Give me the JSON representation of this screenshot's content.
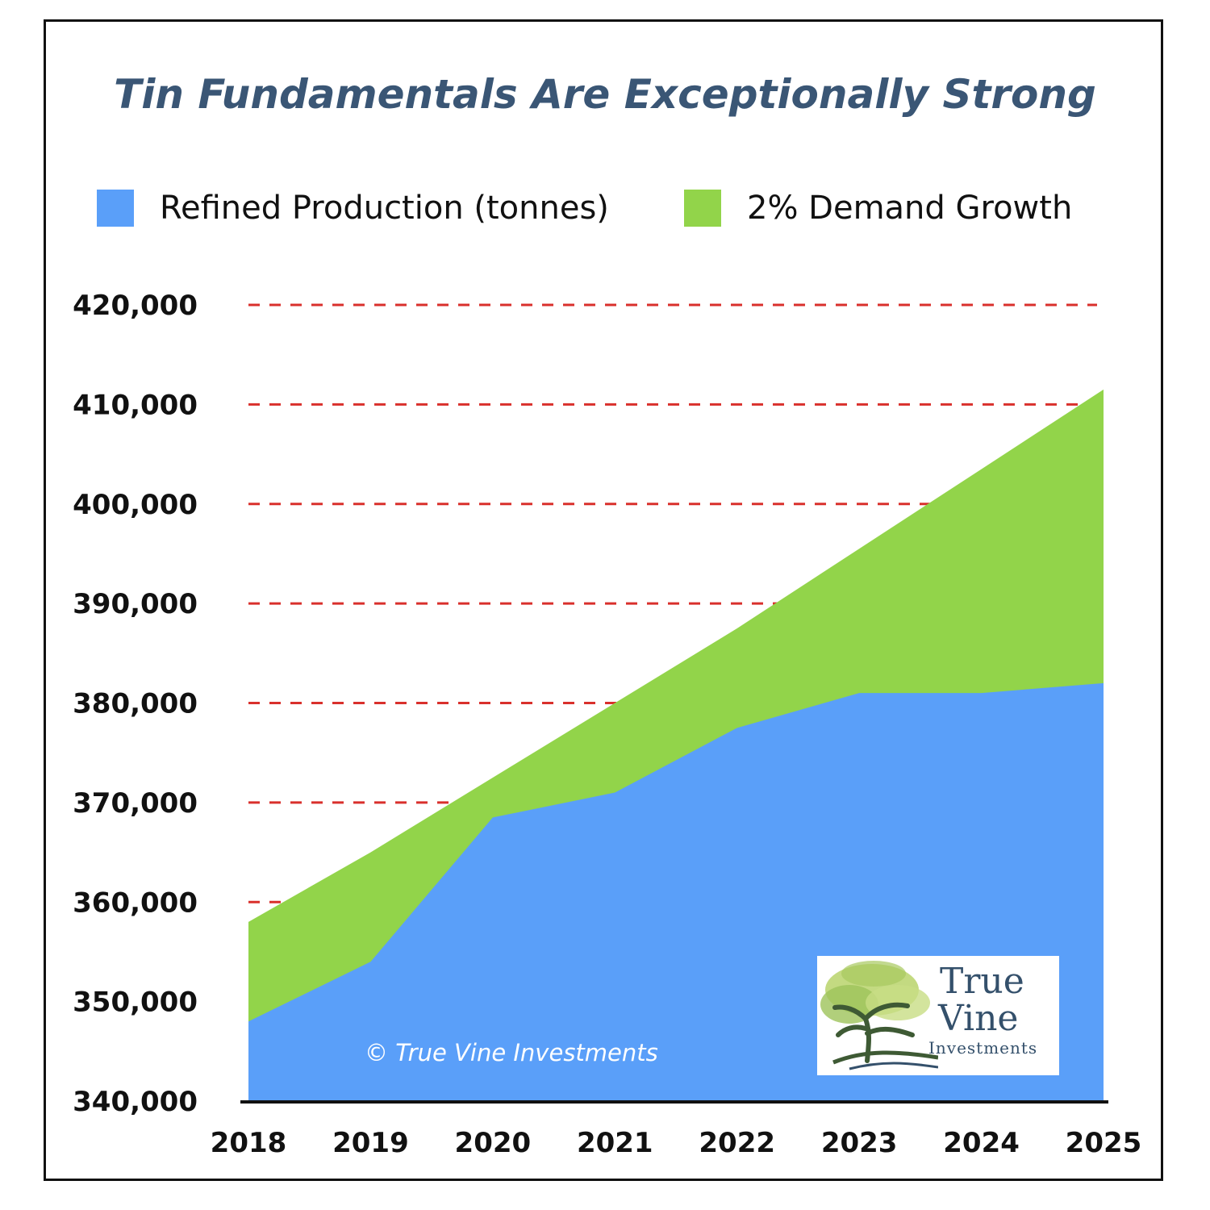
{
  "title": "Tin Fundamentals Are Exceptionally Strong",
  "legend": [
    {
      "label": "Refined Production (tonnes)",
      "color": "#5a9ff9"
    },
    {
      "label": "2% Demand Growth",
      "color": "#92d44a"
    }
  ],
  "copyright": "© True Vine Investments",
  "logo": {
    "line1": "True",
    "line2": "Vine",
    "line3": "Investments",
    "icon": "tree-icon"
  },
  "chart_data": {
    "type": "area",
    "title": "Tin Fundamentals Are Exceptionally Strong",
    "categories": [
      "2018",
      "2019",
      "2020",
      "2021",
      "2022",
      "2023",
      "2024",
      "2025"
    ],
    "series": [
      {
        "name": "Refined Production (tonnes)",
        "color": "#5a9ff9",
        "values": [
          348000,
          354000,
          368500,
          371000,
          377500,
          381000,
          381000,
          382000
        ]
      },
      {
        "name": "2% Demand Growth",
        "color": "#92d44a",
        "values": [
          358000,
          365000,
          372500,
          380000,
          387500,
          395500,
          403500,
          411500
        ]
      }
    ],
    "y_ticks": [
      "340,000",
      "350,000",
      "360,000",
      "370,000",
      "380,000",
      "390,000",
      "400,000",
      "410,000",
      "420,000"
    ],
    "ylim": [
      340000,
      420000
    ],
    "grid": "dashed red horizontal",
    "legend_position": "top",
    "gridline_color": "#d9302c"
  }
}
